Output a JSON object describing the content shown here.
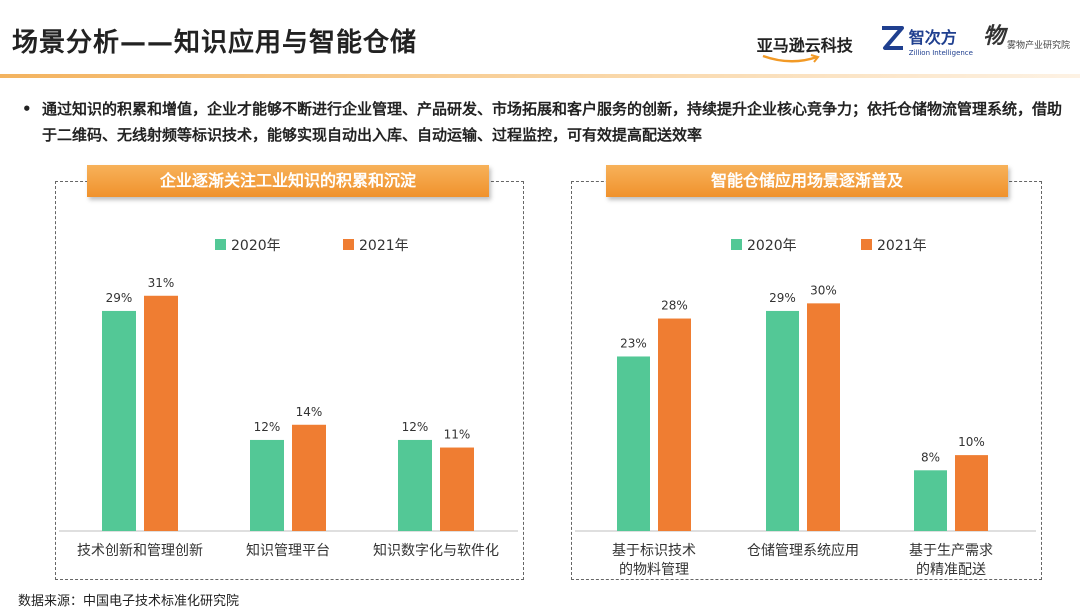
{
  "header": {
    "title": "场景分析——知识应用与智能仓储",
    "logos": {
      "amazon": "亚马逊云科技",
      "zillion": "智次方",
      "zillion_sub": "Zillion Intelligence",
      "institute": "雾物产业研究院"
    }
  },
  "bullet": {
    "symbol": "•",
    "text": "通过知识的积累和增值，企业才能够不断进行企业管理、产品研发、市场拓展和客户服务的创新，持续提升企业核心竞争力；依托仓储物流管理系统，借助于二维码、无线射频等标识技术，能够实现自动出入库、自动运输、过程监控，可有效提高配送效率"
  },
  "colors": {
    "series_2020": "#53c896",
    "series_2021": "#ef7d32",
    "banner": "#f5a340"
  },
  "chart_data": [
    {
      "type": "bar",
      "title": "企业逐渐关注工业知识的积累和沉淀",
      "categories": [
        "技术创新和管理创新",
        "知识管理平台",
        "知识数字化与软件化"
      ],
      "series": [
        {
          "name": "2020年",
          "values": [
            29,
            12,
            12
          ],
          "labels": [
            "29%",
            "12%",
            "12%"
          ]
        },
        {
          "name": "2021年",
          "values": [
            31,
            14,
            11
          ],
          "labels": [
            "31%",
            "14%",
            "11%"
          ]
        }
      ],
      "unit": "%",
      "ylim": [
        0,
        34
      ],
      "grid": false,
      "legend": "top-center"
    },
    {
      "type": "bar",
      "title": "智能仓储应用场景逐渐普及",
      "categories": [
        "基于标识技术\n的物料管理",
        "仓储管理系统应用",
        "基于生产需求\n的精准配送"
      ],
      "series": [
        {
          "name": "2020年",
          "values": [
            23,
            29,
            8
          ],
          "labels": [
            "23%",
            "29%",
            "8%"
          ]
        },
        {
          "name": "2021年",
          "values": [
            28,
            30,
            10
          ],
          "labels": [
            "28%",
            "30%",
            "10%"
          ]
        }
      ],
      "unit": "%",
      "ylim": [
        0,
        34
      ],
      "grid": false,
      "legend": "top-center"
    }
  ],
  "source": "数据来源：中国电子技术标准化研究院"
}
